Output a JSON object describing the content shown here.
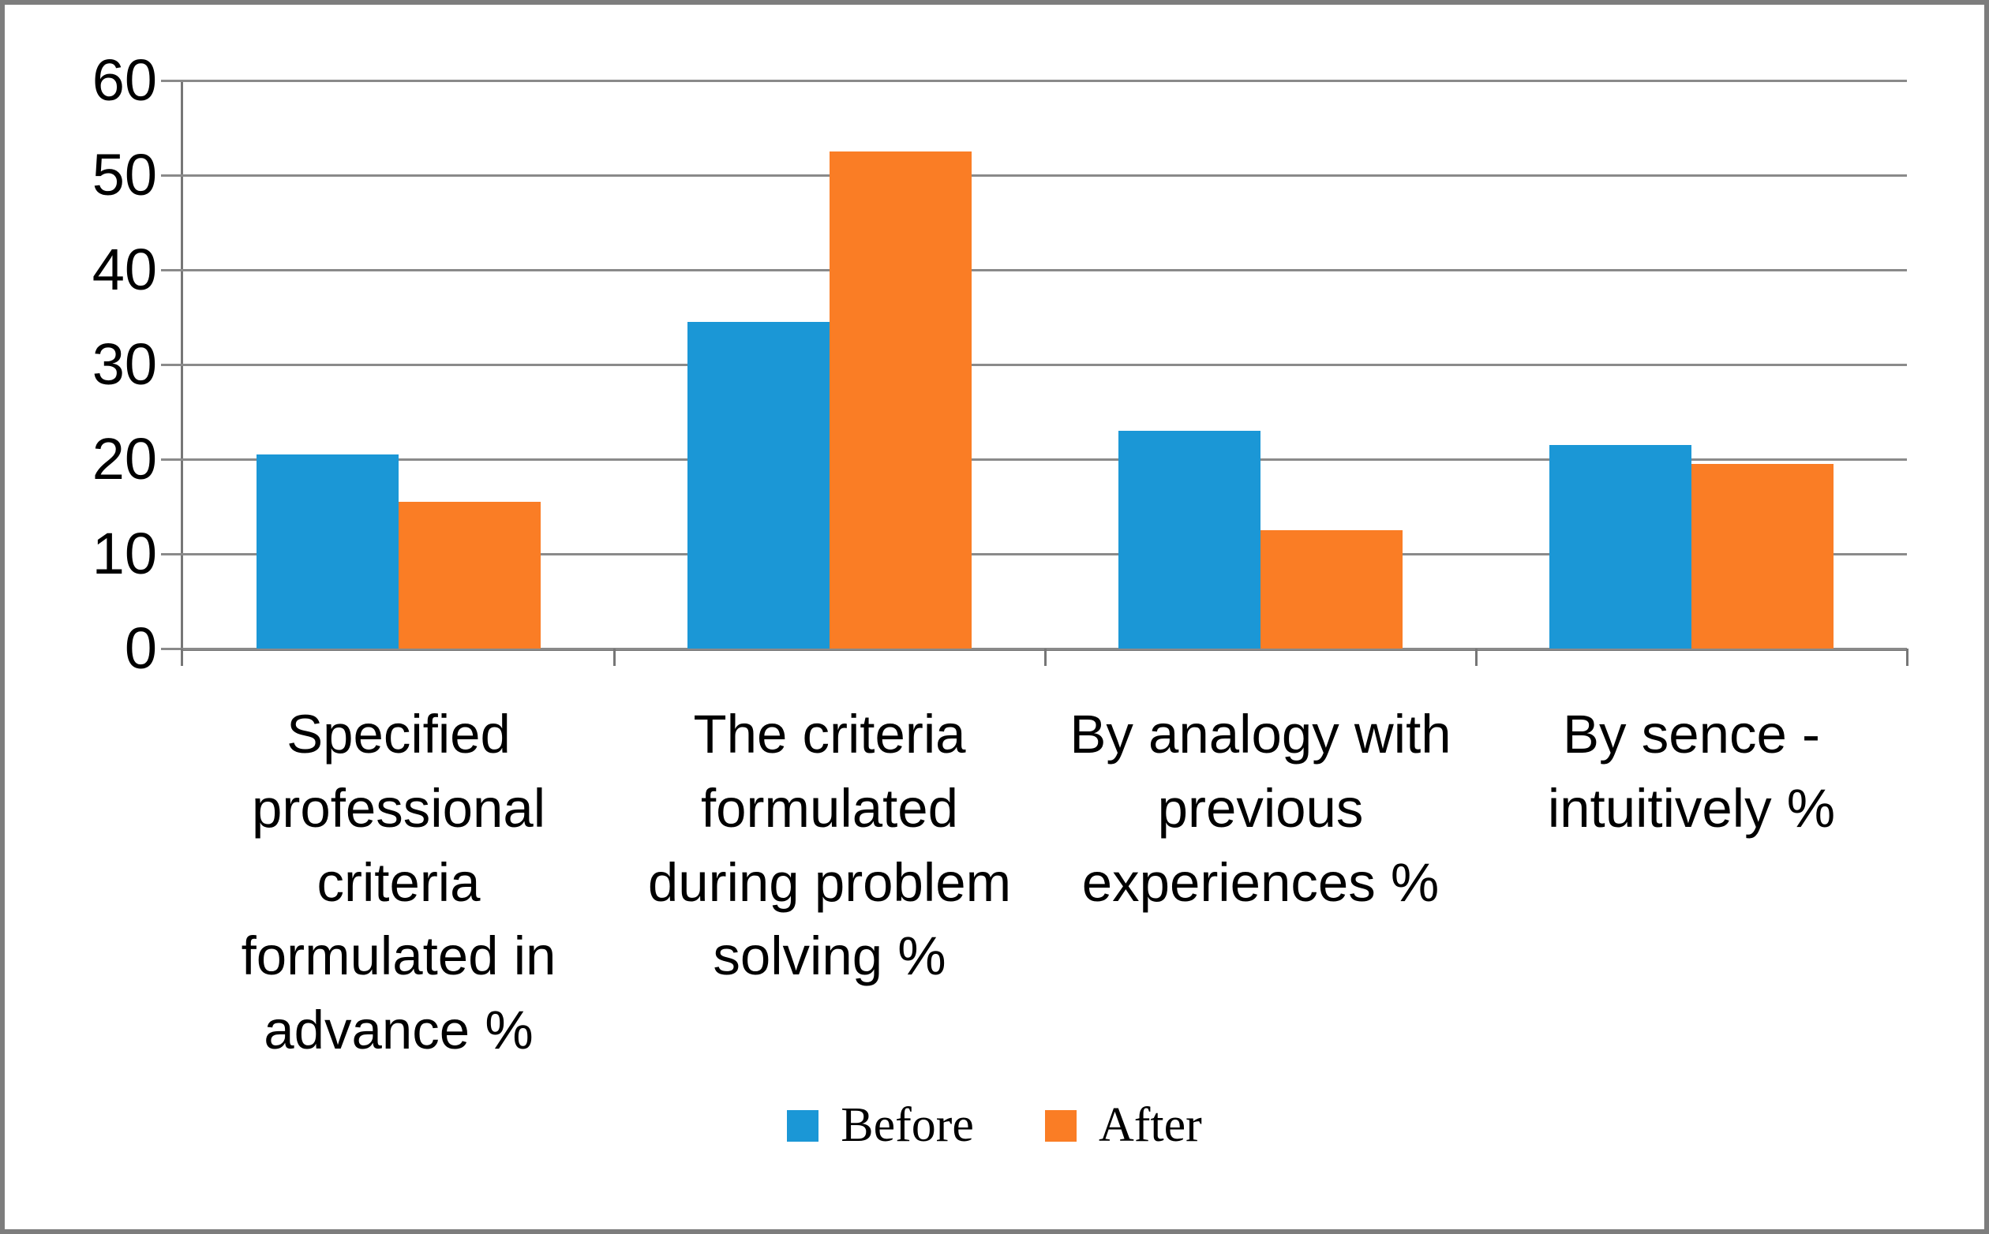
{
  "chart_data": {
    "type": "bar",
    "title": "",
    "xlabel": "",
    "ylabel": "",
    "categories": [
      "Specified professional criteria formulated in advance %",
      "The criteria formulated during problem solving %",
      "By analogy with previous experiences %",
      "By sence - intuitively %"
    ],
    "series": [
      {
        "name": "Before",
        "color": "#1B97D6",
        "values": [
          20.5,
          34.5,
          23,
          21.5
        ]
      },
      {
        "name": "After",
        "color": "#FA7D25",
        "values": [
          15.5,
          52.5,
          12.5,
          19.5
        ]
      }
    ],
    "ylim": [
      0,
      60
    ],
    "y_ticks": [
      60,
      50,
      40,
      30,
      20,
      10,
      0
    ],
    "grid": true,
    "legend_position": "bottom",
    "gridline_color": "#8A8A8A",
    "axis_color": "#767676",
    "background_color": "#FFFFFF",
    "frame_border_color": "#7D7D7D",
    "text_color": "#000000"
  }
}
